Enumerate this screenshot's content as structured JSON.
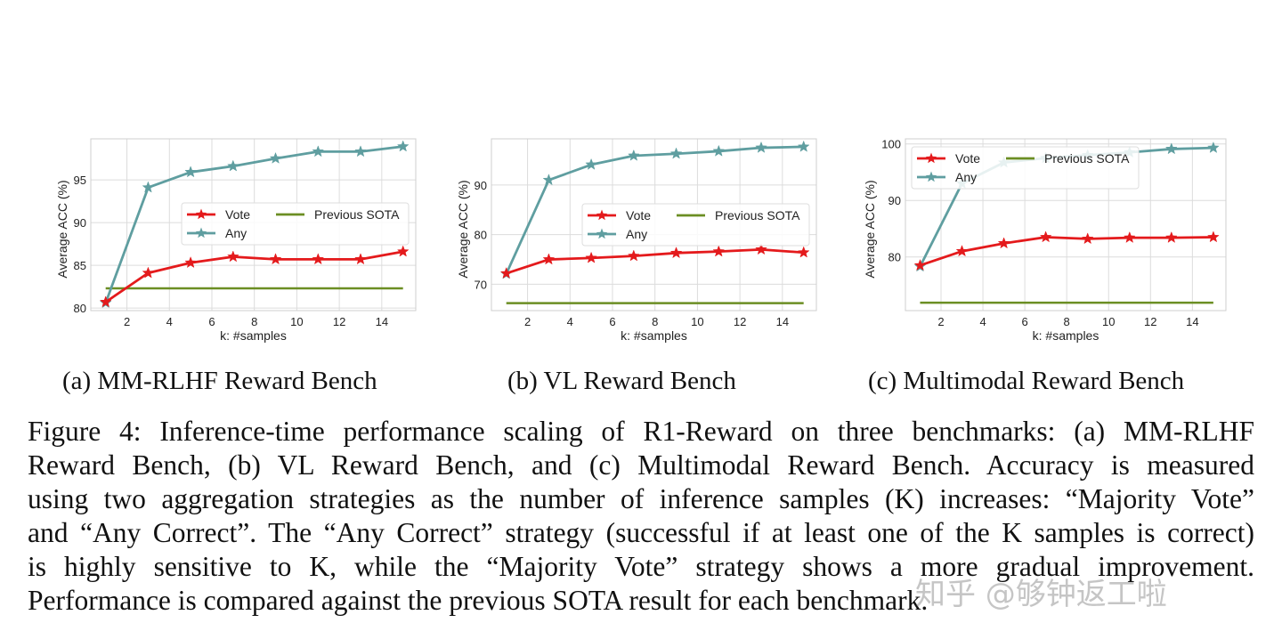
{
  "chart_data": [
    {
      "type": "line",
      "subcaption": "(a)  MM-RLHF Reward Bench",
      "xlabel": "k: #samples",
      "ylabel": "Average ACC (%)",
      "x": [
        1,
        3,
        5,
        7,
        9,
        11,
        13,
        15
      ],
      "xlim": [
        0.3,
        15.6
      ],
      "ylim": [
        79.7,
        99.8
      ],
      "xticks": [
        2,
        4,
        6,
        8,
        10,
        12,
        14
      ],
      "yticks": [
        80,
        85,
        90,
        95
      ],
      "grid": true,
      "legend_position": "center-right",
      "series": [
        {
          "name": "Vote",
          "color": "#e41a1c",
          "marker": "star",
          "values": [
            80.7,
            84.1,
            85.3,
            86.0,
            85.7,
            85.7,
            85.7,
            86.6
          ]
        },
        {
          "name": "Any",
          "color": "#5f9ea0",
          "marker": "star",
          "values": [
            80.6,
            94.1,
            95.9,
            96.6,
            97.5,
            98.3,
            98.3,
            98.9
          ]
        },
        {
          "name": "Previous SOTA",
          "color": "#6b8e23",
          "marker": "none",
          "constant": 82.3
        }
      ]
    },
    {
      "type": "line",
      "subcaption": "(b)  VL Reward Bench",
      "xlabel": "k: #samples",
      "ylabel": "Average ACC (%)",
      "x": [
        1,
        3,
        5,
        7,
        9,
        11,
        13,
        15
      ],
      "xlim": [
        0.3,
        15.6
      ],
      "ylim": [
        64.7,
        99.3
      ],
      "xticks": [
        2,
        4,
        6,
        8,
        10,
        12,
        14
      ],
      "yticks": [
        70,
        80,
        90
      ],
      "grid": true,
      "legend_position": "center-right",
      "series": [
        {
          "name": "Vote",
          "color": "#e41a1c",
          "marker": "star",
          "values": [
            72.2,
            75.0,
            75.3,
            75.7,
            76.3,
            76.6,
            77.0,
            76.4
          ]
        },
        {
          "name": "Any",
          "color": "#5f9ea0",
          "marker": "star",
          "values": [
            72.1,
            91.0,
            94.1,
            95.9,
            96.3,
            96.8,
            97.5,
            97.7
          ]
        },
        {
          "name": "Previous SOTA",
          "color": "#6b8e23",
          "marker": "none",
          "constant": 66.2
        }
      ]
    },
    {
      "type": "line",
      "subcaption": "(c)  Multimodal Reward Bench",
      "xlabel": "k: #samples",
      "ylabel": "Average ACC (%)",
      "x": [
        1,
        3,
        5,
        7,
        9,
        11,
        13,
        15
      ],
      "xlim": [
        0.3,
        15.6
      ],
      "ylim": [
        70.5,
        100.9
      ],
      "xticks": [
        2,
        4,
        6,
        8,
        10,
        12,
        14
      ],
      "yticks": [
        80,
        90,
        100
      ],
      "grid": true,
      "legend_position": "upper-left",
      "series": [
        {
          "name": "Vote",
          "color": "#e41a1c",
          "marker": "star",
          "values": [
            78.5,
            81.0,
            82.4,
            83.5,
            83.2,
            83.4,
            83.4,
            83.5
          ]
        },
        {
          "name": "Any",
          "color": "#5f9ea0",
          "marker": "star",
          "values": [
            78.3,
            93.0,
            96.7,
            97.5,
            98.0,
            98.5,
            99.1,
            99.3
          ]
        },
        {
          "name": "Previous SOTA",
          "color": "#6b8e23",
          "marker": "none",
          "constant": 71.9
        }
      ]
    }
  ],
  "caption": {
    "lines": [
      "Figure 4: Inference-time performance scaling of R1-Reward on three benchmarks: (a) MM-RLHF",
      "Reward Bench, (b) VL Reward Bench, and (c) Multimodal Reward Bench. Accuracy is measured",
      "using two aggregation strategies as the number of inference samples (K) increases: “Majority Vote”",
      "and “Any Correct”. The “Any Correct” strategy (successful if at least one of the K samples is correct)",
      "is highly sensitive to K, while the “Majority Vote” strategy shows a more gradual improvement.",
      "Performance is compared against the previous SOTA result for each benchmark."
    ]
  },
  "watermark": "知乎 @够钟返工啦"
}
